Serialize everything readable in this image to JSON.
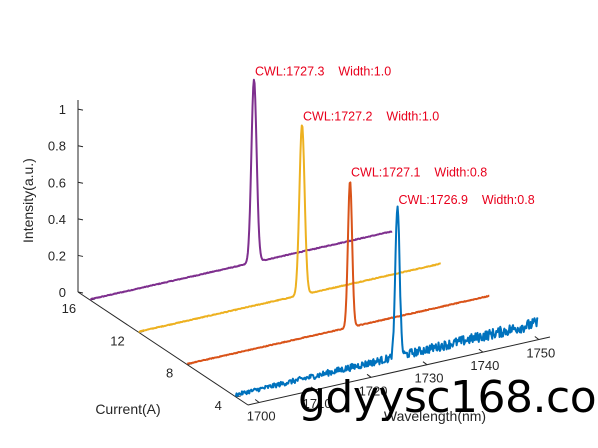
{
  "chart_data": {
    "type": "line",
    "projection": "3d-waterfall",
    "zlabel": "Intensity(a.u.)",
    "xlabel": "Wavelength(nm)",
    "ylabel": "Current(A)",
    "x_ticks": [
      "1700",
      "1710",
      "1720",
      "1730",
      "1740",
      "1750"
    ],
    "y_ticks": [
      "4",
      "8",
      "12",
      "16"
    ],
    "z_ticks": [
      "0",
      "0.2",
      "0.4",
      "0.6",
      "0.8",
      "1"
    ],
    "xlim": [
      1698,
      1752
    ],
    "ylim": [
      3,
      17
    ],
    "zlim": [
      0,
      1.05
    ],
    "grid": false,
    "series": [
      {
        "current": 4,
        "color": "#0072BD",
        "peak_wavelength": 1726.9,
        "peak_intensity": 0.83,
        "fwhm": 0.8,
        "noise": "high",
        "annotation": "CWL:1726.9    Width:0.8"
      },
      {
        "current": 8,
        "color": "#D95319",
        "peak_wavelength": 1727.1,
        "peak_intensity": 0.8,
        "fwhm": 0.8,
        "noise": "low",
        "annotation": "CWL:1727.1    Width:0.8"
      },
      {
        "current": 12,
        "color": "#EDB120",
        "peak_wavelength": 1727.2,
        "peak_intensity": 0.93,
        "fwhm": 1.0,
        "noise": "low",
        "annotation": "CWL:1727.2    Width:1.0"
      },
      {
        "current": 16,
        "color": "#7E2F8E",
        "peak_wavelength": 1727.3,
        "peak_intensity": 1.0,
        "fwhm": 1.0,
        "noise": "low",
        "annotation": "CWL:1727.3    Width:1.0"
      }
    ]
  },
  "watermark": "gdyysc168.co"
}
